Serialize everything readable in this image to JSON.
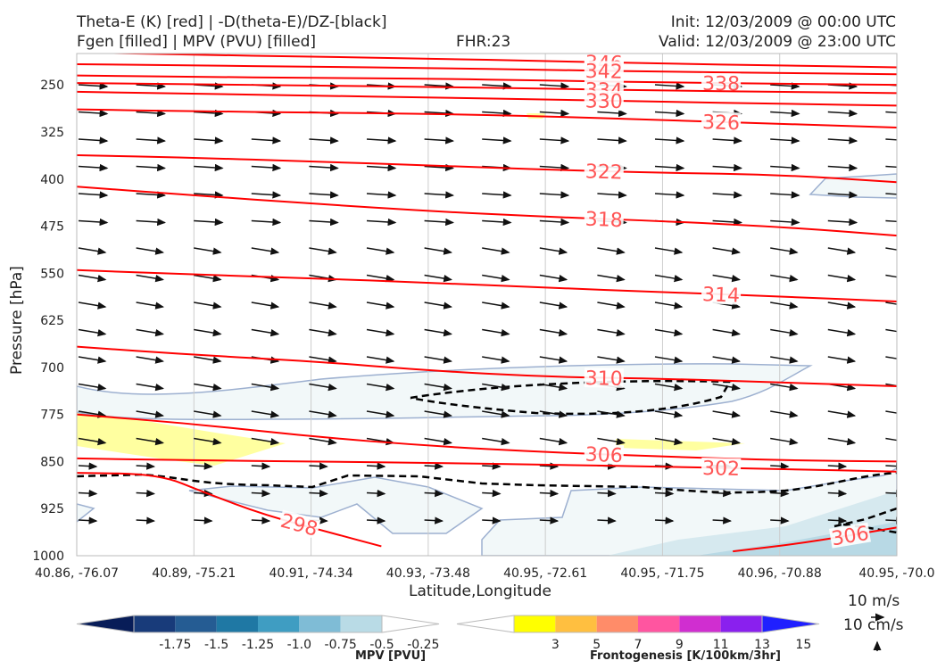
{
  "header": {
    "title_line1": "Theta-E (K) [red] | -D(theta-E)/DZ-[black]",
    "title_line2": "Fgen [filled] | MPV (PVU) [filled]",
    "fhr": "FHR:23",
    "init": "Init: 12/03/2009 @ 00:00 UTC",
    "valid": "Valid: 12/03/2009 @ 23:00 UTC"
  },
  "chart_data": {
    "type": "cross-section",
    "xlabel": "Latitude,Longitude",
    "ylabel": "Pressure [hPa]",
    "x_ticks": [
      "40.86, -76.07",
      "40.89, -75.21",
      "40.91, -74.34",
      "40.93, -73.48",
      "40.95, -72.61",
      "40.95, -71.75",
      "40.96, -70.88",
      "40.95, -70.0"
    ],
    "y_ticks": [
      250,
      325,
      400,
      475,
      550,
      625,
      700,
      775,
      850,
      925,
      1000
    ],
    "ylim": [
      1000,
      200
    ],
    "y_reversed": true,
    "theta_e_contours": [
      {
        "level": "346",
        "points": [
          [
            0,
            198
          ],
          [
            1,
            202
          ],
          [
            2,
            205
          ],
          [
            3,
            208
          ],
          [
            4,
            212
          ],
          [
            5,
            216
          ],
          [
            6,
            219
          ],
          [
            7,
            222
          ]
        ]
      },
      {
        "level": "342",
        "points": [
          [
            0,
            217
          ],
          [
            1,
            219
          ],
          [
            2,
            221
          ],
          [
            3,
            223
          ],
          [
            4,
            226
          ],
          [
            5,
            229
          ],
          [
            6,
            231
          ],
          [
            7,
            233
          ]
        ]
      },
      {
        "level": "338",
        "points": [
          [
            0,
            235
          ],
          [
            1,
            237
          ],
          [
            2,
            239
          ],
          [
            3,
            240
          ],
          [
            4,
            243
          ],
          [
            5,
            246
          ],
          [
            6,
            248
          ],
          [
            7,
            250
          ]
        ]
      },
      {
        "level": "334",
        "points": [
          [
            0,
            247
          ],
          [
            1,
            249
          ],
          [
            2,
            251
          ],
          [
            3,
            253
          ],
          [
            4,
            256
          ],
          [
            5,
            259
          ],
          [
            6,
            261
          ],
          [
            7,
            263
          ]
        ]
      },
      {
        "level": "330",
        "points": [
          [
            0,
            261
          ],
          [
            1,
            264
          ],
          [
            2,
            267
          ],
          [
            3,
            270
          ],
          [
            4,
            273
          ],
          [
            5,
            277
          ],
          [
            6,
            280
          ],
          [
            7,
            283
          ]
        ]
      },
      {
        "level": "326",
        "points": [
          [
            0,
            289
          ],
          [
            1,
            292
          ],
          [
            2,
            294
          ],
          [
            3,
            296
          ],
          [
            4,
            300
          ],
          [
            5,
            306
          ],
          [
            6,
            312
          ],
          [
            7,
            318
          ]
        ]
      },
      {
        "level": "322",
        "points": [
          [
            0,
            362
          ],
          [
            1,
            366
          ],
          [
            2,
            372
          ],
          [
            3,
            378
          ],
          [
            4,
            385
          ],
          [
            5,
            390
          ],
          [
            6,
            393
          ],
          [
            7,
            405
          ]
        ]
      },
      {
        "level": "318",
        "points": [
          [
            0,
            412
          ],
          [
            1,
            426
          ],
          [
            2,
            439
          ],
          [
            3,
            451
          ],
          [
            4,
            460
          ],
          [
            5,
            467
          ],
          [
            6,
            476
          ],
          [
            7,
            490
          ]
        ]
      },
      {
        "level": "314",
        "points": [
          [
            0,
            545
          ],
          [
            1,
            552
          ],
          [
            2,
            558
          ],
          [
            3,
            565
          ],
          [
            4,
            573
          ],
          [
            5,
            580
          ],
          [
            6,
            587
          ],
          [
            7,
            595
          ]
        ]
      },
      {
        "level": "310",
        "points": [
          [
            0,
            667
          ],
          [
            1,
            680
          ],
          [
            2,
            690
          ],
          [
            3,
            705
          ],
          [
            4,
            715
          ],
          [
            5,
            718
          ],
          [
            6,
            724
          ],
          [
            7,
            730
          ]
        ]
      },
      {
        "level": "306",
        "points": [
          [
            0,
            775
          ],
          [
            1,
            790
          ],
          [
            2,
            810
          ],
          [
            3,
            825
          ],
          [
            4,
            835
          ],
          [
            5,
            842
          ],
          [
            6,
            848
          ],
          [
            7,
            850
          ]
        ]
      },
      {
        "level": "302",
        "points": [
          [
            0,
            845
          ],
          [
            1,
            848
          ],
          [
            2,
            850
          ],
          [
            3,
            852
          ],
          [
            4,
            855
          ],
          [
            5,
            858
          ],
          [
            6,
            862
          ],
          [
            7,
            866
          ]
        ]
      },
      {
        "level": "298",
        "points": [
          [
            0,
            868
          ],
          [
            0.7,
            870
          ],
          [
            1.1,
            900
          ],
          [
            1.6,
            935
          ],
          [
            2.2,
            965
          ],
          [
            2.6,
            985
          ]
        ]
      },
      {
        "level": "306",
        "points": [
          [
            5.6,
            993
          ],
          [
            6.2,
            980
          ],
          [
            7,
            955
          ]
        ]
      }
    ],
    "mpv_colorbar": {
      "label": "MPV [PVU]",
      "ticks": [
        "-1.75",
        "-1.5",
        "-1.25",
        "-1.0",
        "-0.75",
        "-0.5",
        "-0.25"
      ],
      "colors": [
        "#081d58",
        "#183b7a",
        "#255c93",
        "#1f78a4",
        "#3f9dc2",
        "#7fbcd6",
        "#b9dbe6",
        "#ffffff"
      ]
    },
    "fgen_colorbar": {
      "label": "Frontogenesis [K/100km/3hr]",
      "ticks": [
        "3",
        "5",
        "7",
        "9",
        "11",
        "13",
        "15"
      ],
      "colors": [
        "#ffffff",
        "#ffff00",
        "#ffbf40",
        "#ff8c69",
        "#ff55a0",
        "#d02ed0",
        "#8a20ee",
        "#2020ff"
      ]
    },
    "wind_key": {
      "u_label": "10 m/s",
      "w_label": "10 cm/s"
    },
    "grid": true
  },
  "colors": {
    "theta_e": "#ff0000",
    "theta_e_label": "#ff5555",
    "mpv_fill": "#f2f8f9",
    "mpv_edge": "#9db0d0",
    "fgen_fill": "#ffffa0",
    "ddz": "#000000"
  }
}
